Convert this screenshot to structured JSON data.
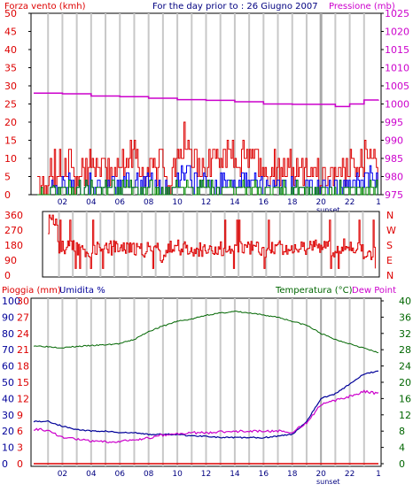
{
  "header": {
    "wind_title": "Forza vento (kmh)",
    "date_title": "For the day prior to : 26 Giugno 2007",
    "pressure_title": "Pressione (mb)"
  },
  "middle_header": {
    "rain_title": "Pioggia (mm)",
    "humidity_title": "Umidita %",
    "temperature_title": "Temperatura (°C)",
    "dewpoint_title": "Dew Point"
  },
  "sunset_label": "sunset",
  "colors": {
    "wind": "#dd0000",
    "wind_avg": "#0000ee",
    "wind_min": "#008800",
    "pressure": "#cc00cc",
    "direction": "#dd0000",
    "temperature": "#006600",
    "humidity": "#000099",
    "dewpoint": "#cc00cc",
    "rain": "#dd0000",
    "grid": "#c8c8c8",
    "sunset_band": "#d8d8d8"
  },
  "chart_data": [
    {
      "type": "line",
      "title": "Forza vento (kmh) / Pressione (mb)",
      "x_ticks": [
        "02",
        "04",
        "06",
        "08",
        "10",
        "12",
        "14",
        "16",
        "18",
        "20",
        "22",
        "1"
      ],
      "xlim": [
        0,
        24
      ],
      "y_left_ticks": [
        "0",
        "5",
        "10",
        "15",
        "20",
        "25",
        "30",
        "35",
        "40",
        "45",
        "50"
      ],
      "y_left_range": [
        0,
        50
      ],
      "y_right_ticks": [
        "975",
        "980",
        "985",
        "990",
        "995",
        "1000",
        "1005",
        "1010",
        "1015",
        "1020",
        "1025"
      ],
      "y_right_range": [
        975,
        1025
      ],
      "series": [
        {
          "name": "Forza vento (kmh)",
          "axis": "left",
          "style": "step",
          "x": [
            0,
            1,
            1.3,
            2,
            3,
            4,
            5,
            6,
            7,
            8,
            9,
            9.5,
            10,
            10.5,
            11,
            12,
            13,
            14,
            15,
            16,
            17,
            18,
            19,
            20,
            21,
            22,
            23,
            23.5,
            24
          ],
          "y": [
            5,
            6,
            12,
            15,
            10,
            12,
            12,
            13,
            15,
            12,
            13,
            8,
            14,
            20,
            15,
            13,
            15,
            15,
            16,
            12,
            12,
            12,
            12,
            10,
            10,
            12,
            15,
            18,
            10
          ]
        },
        {
          "name": "Pressione (mb)",
          "axis": "right",
          "style": "step",
          "x": [
            0,
            2,
            4,
            6,
            8,
            10,
            12,
            14,
            16,
            18,
            20,
            21,
            22,
            23,
            24
          ],
          "y": [
            1003,
            1002.8,
            1002.2,
            1002,
            1001.6,
            1001.2,
            1001,
            1000.6,
            1000,
            999.9,
            999.9,
            999.3,
            1000,
            1001.1,
            1001.2
          ]
        }
      ]
    },
    {
      "type": "line",
      "title": "Direzione vento",
      "y_left_ticks": [
        "360",
        "270",
        "180",
        "90",
        "0"
      ],
      "y_left_range": [
        0,
        360
      ],
      "y_right_ticks": [
        "N",
        "W",
        "S",
        "E",
        "N"
      ],
      "series": [
        {
          "name": "Direzione",
          "style": "step",
          "x": [
            0,
            0.3,
            0.8,
            1,
            2,
            3,
            4,
            5,
            6,
            7,
            8,
            8.5,
            9,
            10,
            11,
            12,
            13,
            14,
            15,
            16,
            17,
            18,
            19,
            20,
            21,
            22,
            23,
            23.5,
            24
          ],
          "y": [
            180,
            350,
            330,
            160,
            170,
            150,
            160,
            165,
            160,
            150,
            160,
            90,
            180,
            160,
            150,
            165,
            160,
            170,
            160,
            150,
            165,
            170,
            160,
            180,
            150,
            190,
            140,
            100,
            170
          ]
        }
      ]
    },
    {
      "type": "line",
      "title": "Pioggia (mm) / Umidita % / Temperatura (°C) / Dew Point",
      "x_ticks": [
        "02",
        "04",
        "06",
        "08",
        "10",
        "12",
        "14",
        "16",
        "18",
        "20",
        "22",
        "1"
      ],
      "xlim": [
        0,
        24
      ],
      "y_left_ticks": [
        "0",
        "10",
        "20",
        "30",
        "40",
        "50",
        "60",
        "70",
        "80",
        "90",
        "100"
      ],
      "y_left_range": [
        0,
        100
      ],
      "y_rain_ticks": [
        "0",
        "3",
        "6",
        "9",
        "12",
        "15",
        "18",
        "21",
        "24",
        "27",
        "30"
      ],
      "y_rain_range": [
        0,
        30
      ],
      "y_right_ticks": [
        "0",
        "4",
        "8",
        "12",
        "16",
        "20",
        "24",
        "28",
        "32",
        "36",
        "40"
      ],
      "y_right_range": [
        0,
        40
      ],
      "series": [
        {
          "name": "Temperatura (°C)",
          "axis": "right",
          "x": [
            0,
            2,
            3,
            4,
            5,
            6,
            7,
            8,
            9,
            10,
            11,
            12,
            13,
            14,
            15,
            16,
            17,
            18,
            19,
            20,
            21,
            22,
            23,
            24
          ],
          "y": [
            29,
            28.5,
            28.8,
            29,
            29.2,
            29.5,
            30.5,
            32.5,
            33.8,
            35,
            35.5,
            36.5,
            37,
            37.4,
            37,
            36.5,
            36,
            35,
            34,
            32,
            30.5,
            29.5,
            28.4,
            27.2
          ]
        },
        {
          "name": "Umidita %",
          "axis": "left",
          "x": [
            0,
            1,
            2,
            3,
            4,
            5,
            6,
            7,
            8,
            9,
            10,
            11,
            12,
            13,
            14,
            15,
            16,
            17,
            18,
            19,
            20,
            21,
            22,
            23,
            24
          ],
          "y": [
            26,
            26,
            23,
            21,
            20,
            20,
            19,
            19,
            18,
            18,
            18,
            17,
            17,
            16,
            16,
            16,
            16,
            17,
            18,
            26,
            40,
            43,
            49,
            55,
            57
          ]
        },
        {
          "name": "Dew Point",
          "axis": "right",
          "x": [
            0,
            1,
            2,
            3,
            4,
            5,
            6,
            7,
            8,
            9,
            10,
            11,
            12,
            13,
            14,
            15,
            16,
            17,
            18,
            19,
            20,
            21,
            22,
            23,
            24
          ],
          "y": [
            8.5,
            8.2,
            6.5,
            6,
            5.5,
            5.3,
            5.5,
            5.8,
            6.3,
            7,
            7.3,
            7.6,
            7.6,
            7.8,
            8,
            8,
            8,
            8,
            7.8,
            10,
            14.5,
            15.5,
            16.5,
            17.8,
            17.2
          ]
        },
        {
          "name": "Pioggia (mm)",
          "axis": "rain",
          "x": [
            0,
            24
          ],
          "y": [
            0,
            0
          ]
        }
      ]
    }
  ]
}
